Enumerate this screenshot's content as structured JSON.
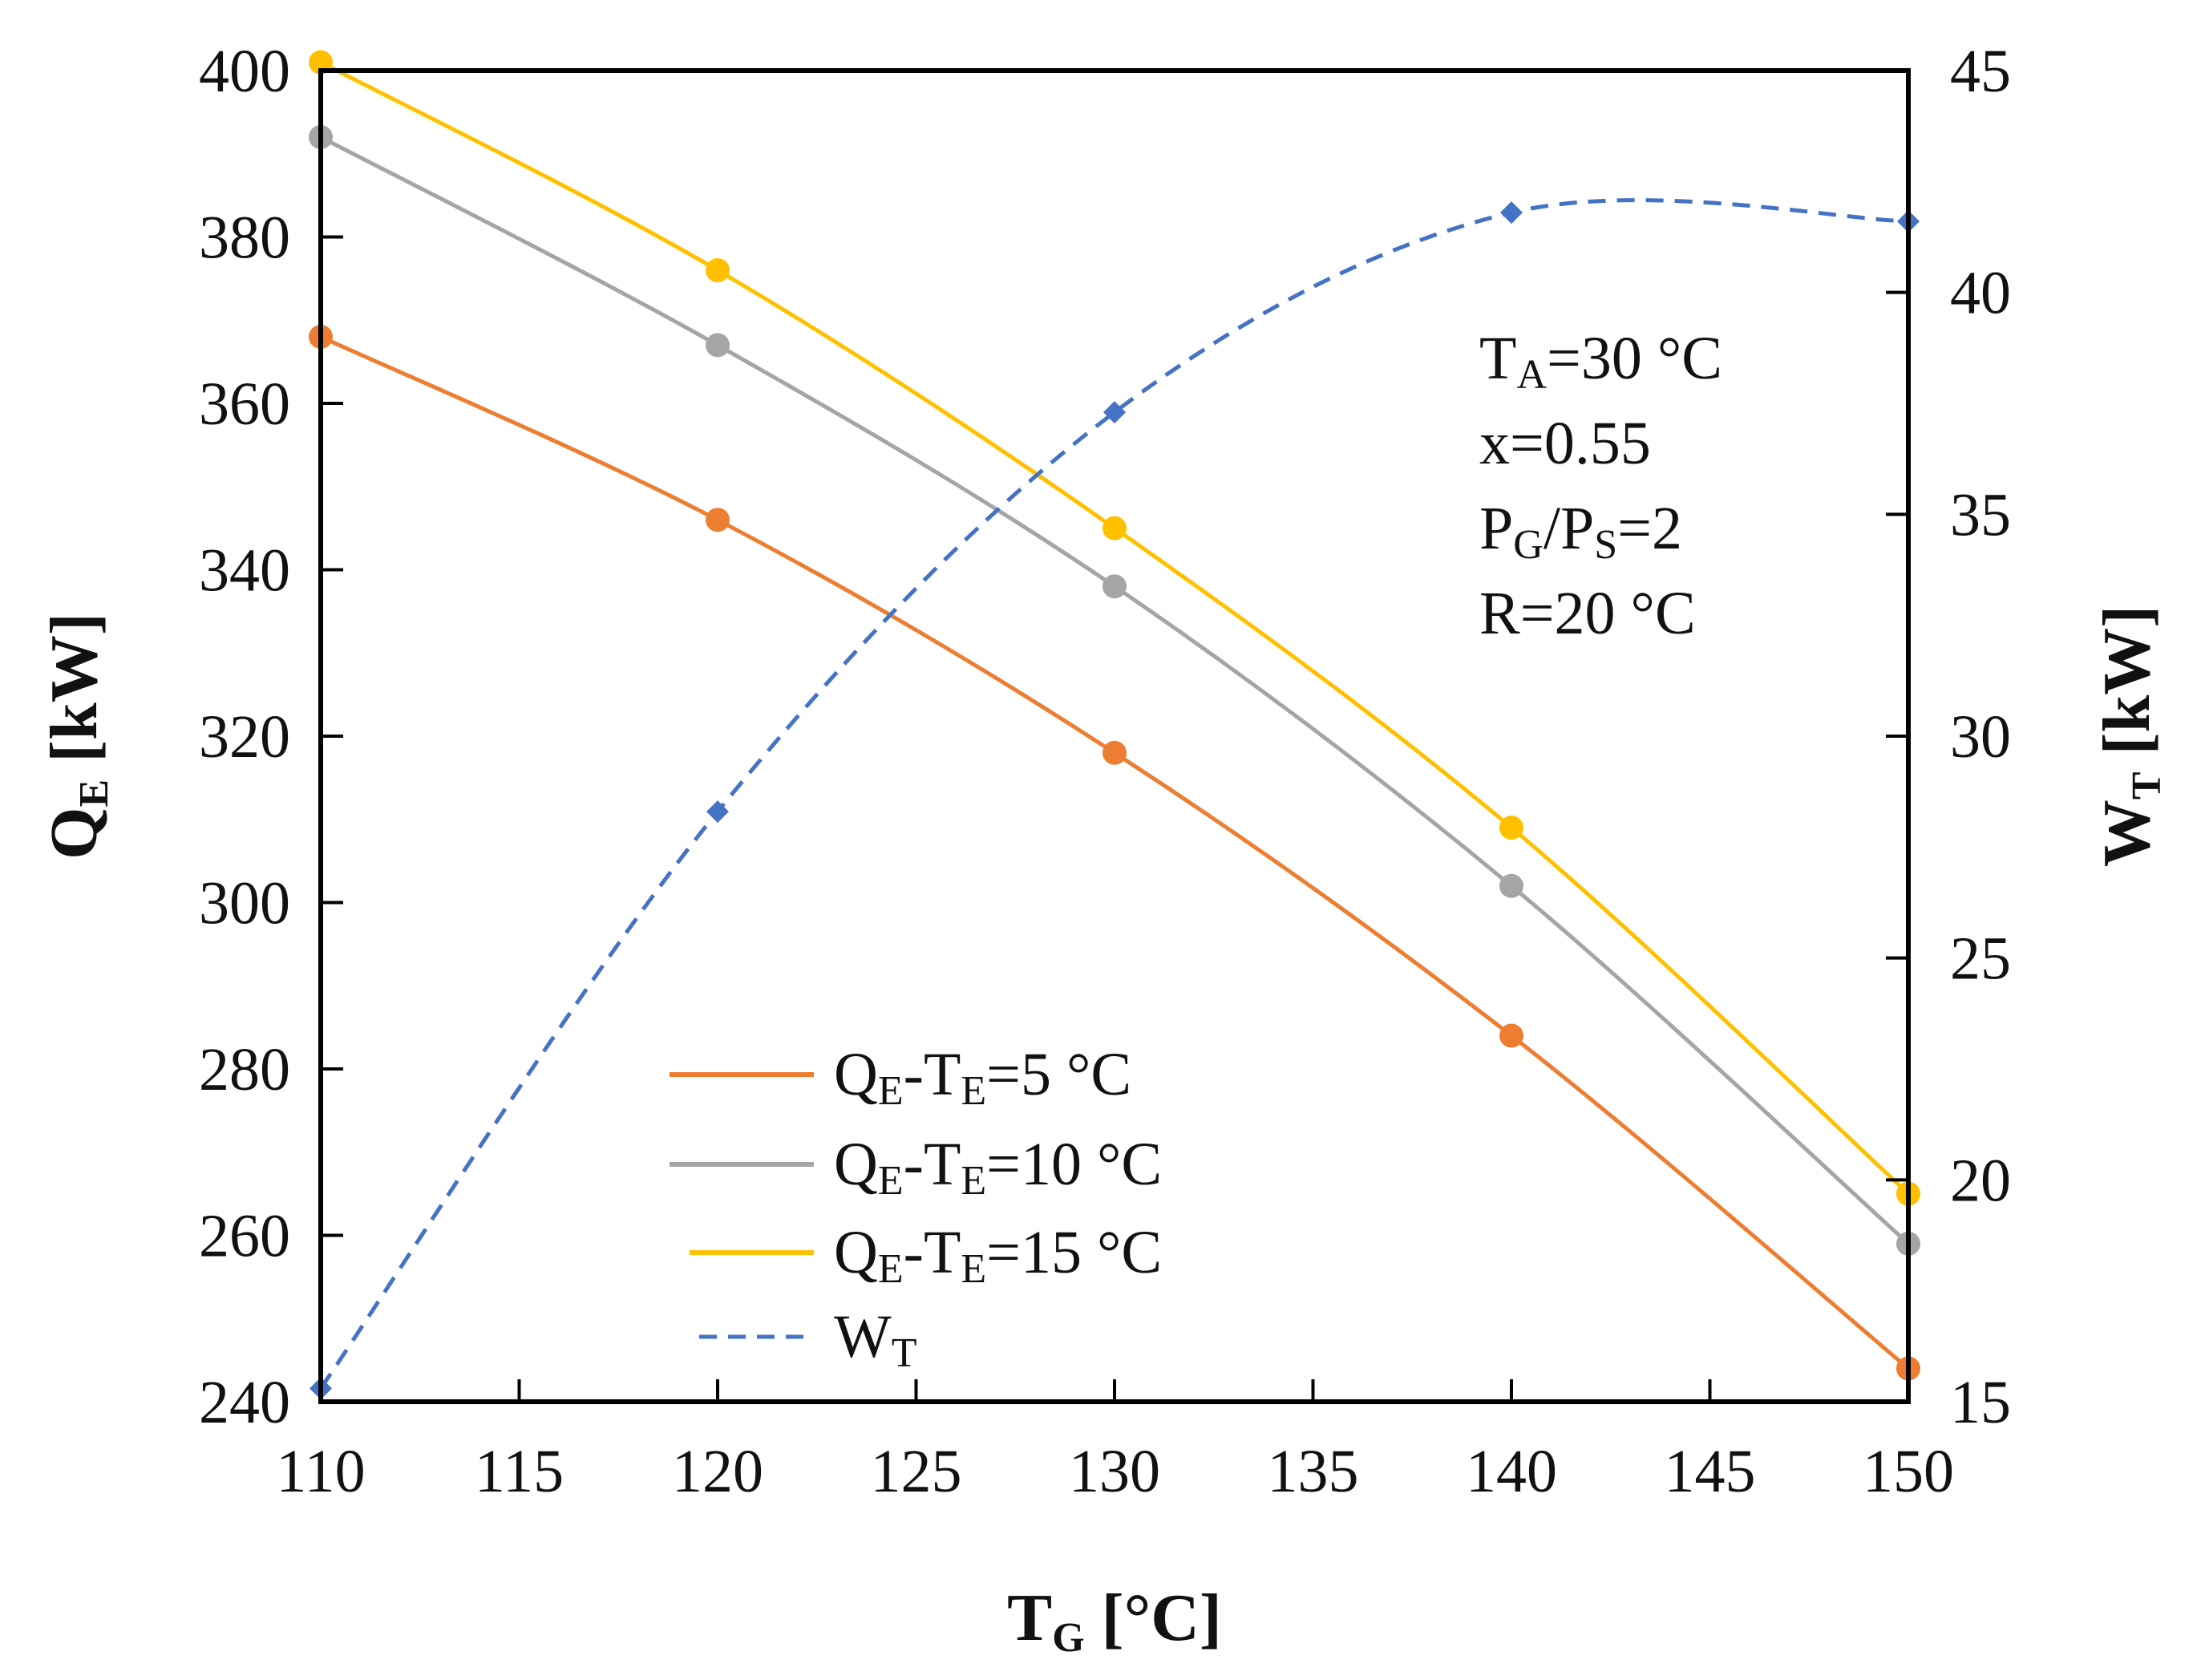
{
  "chart_data": {
    "type": "line",
    "x": [
      110,
      120,
      130,
      140,
      150
    ],
    "xlim": [
      110,
      150
    ],
    "xticks": [
      "110",
      "115",
      "120",
      "125",
      "130",
      "135",
      "140",
      "145",
      "150"
    ],
    "xlabel": {
      "main": "T",
      "sub": "G",
      "unit": " [°C]"
    },
    "y_left": {
      "label": {
        "main": "Q",
        "sub": "E",
        "unit": " [kW]"
      },
      "lim": [
        240,
        400
      ],
      "ticks": [
        "240",
        "260",
        "280",
        "300",
        "320",
        "340",
        "360",
        "380",
        "400"
      ]
    },
    "y_right": {
      "label": {
        "main": "W",
        "sub": "T",
        "unit": " [kW]"
      },
      "lim": [
        15,
        45
      ],
      "ticks": [
        "15",
        "20",
        "25",
        "30",
        "35",
        "40",
        "45"
      ]
    },
    "series": [
      {
        "name": "QE-TE=5 °C",
        "legend": {
          "a": "Q",
          "a_sub": "E",
          "b": "-T",
          "b_sub": "E",
          "c": "=5 °C"
        },
        "axis": "left",
        "color": "#ED7D31",
        "dash": "solid",
        "marker": "circle",
        "values": [
          368,
          346,
          318,
          284,
          244
        ]
      },
      {
        "name": "QE-TE=10 °C",
        "legend": {
          "a": "Q",
          "a_sub": "E",
          "b": "-T",
          "b_sub": "E",
          "c": "=10 °C"
        },
        "axis": "left",
        "color": "#A5A5A5",
        "dash": "solid",
        "marker": "circle",
        "values": [
          392,
          367,
          338,
          302,
          259
        ]
      },
      {
        "name": "QE-TE=15 °C",
        "legend": {
          "a": "Q",
          "a_sub": "E",
          "b": "-T",
          "b_sub": "E",
          "c": "=15 °C"
        },
        "axis": "left",
        "color": "#FFC000",
        "dash": "solid",
        "marker": "circle",
        "values": [
          401,
          376,
          345,
          309,
          265
        ]
      },
      {
        "name": "WT",
        "legend": {
          "a": "W",
          "a_sub": "T",
          "b": "",
          "b_sub": "",
          "c": ""
        },
        "axis": "right",
        "color": "#4472C4",
        "dash": "dashed",
        "marker": "diamond",
        "values": [
          15.3,
          28.3,
          37.3,
          41.8,
          41.6
        ]
      }
    ],
    "annotations": [
      {
        "main": "T",
        "sub": "A",
        "rest": "=30 °C"
      },
      {
        "main": "x=0.55",
        "sub": "",
        "rest": ""
      },
      {
        "main": "P",
        "sub": "G",
        "rest": "/P",
        "sub2": "S",
        "rest2": "=2"
      },
      {
        "main": "R=20 °C",
        "sub": "",
        "rest": ""
      }
    ],
    "legend_position": "lower-left"
  }
}
